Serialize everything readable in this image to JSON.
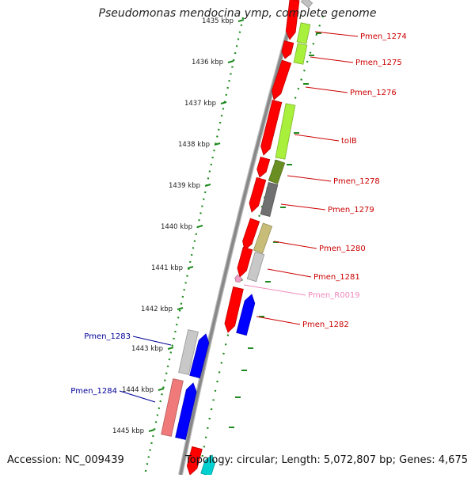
{
  "title": "Pseudomonas mendocina ymp, complete genome",
  "footer": {
    "accession": "Accession: NC_009439",
    "topology": "Topology: circular; Length: 5,072,807 bp; Genes: 4,675"
  },
  "scale": {
    "unit_labels": [
      "1435 kbp",
      "1436 kbp",
      "1437 kbp",
      "1438 kbp",
      "1439 kbp",
      "1440 kbp",
      "1441 kbp",
      "1442 kbp",
      "1443 kbp",
      "1444 kbp",
      "1445 kbp"
    ]
  },
  "colors": {
    "backbone": "#888888",
    "ruler": "#1f8a1f",
    "red": "#ff0000",
    "lime": "#a8f03c",
    "olive": "#6b8e23",
    "darkgray": "#707070",
    "khaki": "#c8bd78",
    "lightgray": "#c8c8c8",
    "pink": "#f0a0c8",
    "blue": "#0000ff",
    "salmon": "#f07a7a",
    "cyan": "#00d0d0",
    "label_red": "#cc0000",
    "label_blue": "#000099",
    "label_pink": "#ee88bb"
  },
  "labels": [
    {
      "text": "Pmen_1274",
      "color": "label_red"
    },
    {
      "text": "Pmen_1275",
      "color": "label_red"
    },
    {
      "text": "Pmen_1276",
      "color": "label_red"
    },
    {
      "text": "tolB",
      "color": "label_red"
    },
    {
      "text": "Pmen_1278",
      "color": "label_red"
    },
    {
      "text": "Pmen_1279",
      "color": "label_red"
    },
    {
      "text": "Pmen_1280",
      "color": "label_red"
    },
    {
      "text": "Pmen_1281",
      "color": "label_red"
    },
    {
      "text": "Pmen_R0019",
      "color": "label_pink"
    },
    {
      "text": "Pmen_1282",
      "color": "label_red"
    },
    {
      "text": "Pmen_1283",
      "color": "label_blue"
    },
    {
      "text": "Pmen_1284",
      "color": "label_blue"
    }
  ]
}
